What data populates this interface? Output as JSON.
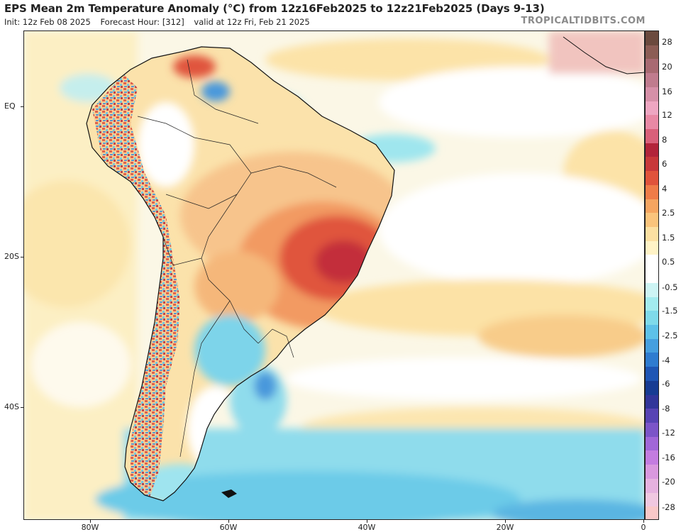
{
  "header": {
    "title": "EPS Mean 2m Temperature Anomaly (°C) from 12z16Feb2025 to 12z21Feb2025 (Days 9-13)",
    "init": "Init: 12z Feb 08 2025",
    "forecast_hour": "Forecast Hour: [312]",
    "valid": "valid at 12z Fri, Feb 21 2025",
    "watermark": "TROPICALTIDBITS.COM"
  },
  "map": {
    "lat_labels": [
      "EQ",
      "20S",
      "40S"
    ],
    "lon_labels": [
      "80W",
      "60W",
      "40W",
      "20W",
      "0"
    ]
  },
  "colorbar": {
    "labels": [
      "28",
      "20",
      "16",
      "12",
      "8",
      "6",
      "4",
      "2.5",
      "1.5",
      "0.5",
      "-0.5",
      "-1.5",
      "-2.5",
      "-4",
      "-6",
      "-8",
      "-12",
      "-16",
      "-20",
      "-28"
    ],
    "colors": [
      "#6b4a3e",
      "#8c5d55",
      "#a86a72",
      "#c07c8e",
      "#d690a8",
      "#eea6c2",
      "#e889a5",
      "#d9607a",
      "#b2243a",
      "#c8383a",
      "#e0533b",
      "#ef7c48",
      "#f5a560",
      "#fac47c",
      "#fce0a2",
      "#fff3c6",
      "#ffffff",
      "#ffffff",
      "#cdf4f4",
      "#a3ebee",
      "#7fdaea",
      "#5ec1e8",
      "#469fdf",
      "#2f7cd0",
      "#1f56b4",
      "#173c93",
      "#32369a",
      "#5844b4",
      "#7c55c8",
      "#a167d8",
      "#c47ce0",
      "#d998de",
      "#e6b2df",
      "#f0c8e0",
      "#f9c8c8"
    ]
  }
}
